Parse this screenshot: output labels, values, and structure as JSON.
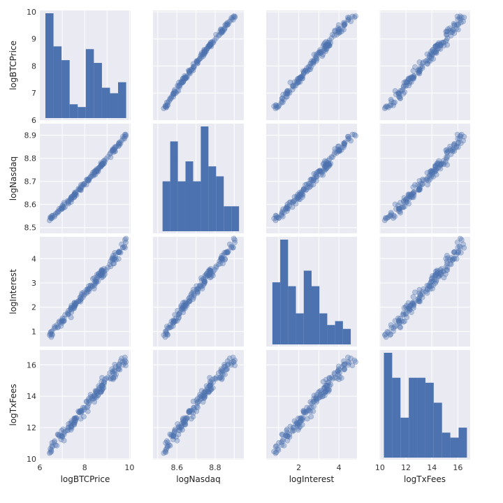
{
  "chart_data": {
    "type": "pairplot",
    "variables": [
      "logBTCPrice",
      "logNasdaq",
      "logInterest",
      "logTxFees"
    ],
    "ranges": {
      "logBTCPrice": [
        6.0,
        10.05
      ],
      "logNasdaq": [
        8.475,
        8.95
      ],
      "logInterest": [
        0.38,
        4.9
      ],
      "logTxFees": [
        9.95,
        16.95
      ]
    },
    "ticks": {
      "logBTCPrice": [
        6,
        7,
        8,
        9,
        10
      ],
      "logNasdaq": [
        8.5,
        8.6,
        8.7,
        8.8,
        8.9
      ],
      "logInterest": [
        1,
        2,
        3,
        4
      ],
      "logTxFees": [
        10,
        12,
        14,
        16
      ]
    },
    "bottom_ticks": {
      "logBTCPrice": [
        6,
        8,
        10
      ],
      "logNasdaq": [
        8.6,
        8.8
      ],
      "logInterest": [
        2,
        4
      ],
      "logTxFees": [
        10,
        12,
        14,
        16
      ]
    },
    "histograms": {
      "logBTCPrice": {
        "edges": [
          6.25,
          6.61,
          6.97,
          7.33,
          7.69,
          8.05,
          8.41,
          8.77,
          9.13,
          9.49,
          9.85
        ],
        "counts": [
          38,
          26,
          21,
          5,
          4,
          25,
          20,
          11,
          9,
          13
        ]
      },
      "logNasdaq": {
        "edges": [
          8.525,
          8.565,
          8.605,
          8.645,
          8.685,
          8.725,
          8.765,
          8.805,
          8.845,
          8.885,
          8.925
        ],
        "counts": [
          10,
          18,
          10,
          14,
          10,
          21,
          13,
          11,
          5,
          5
        ]
      },
      "logInterest": {
        "edges": [
          0.69,
          1.08,
          1.47,
          1.86,
          2.25,
          2.64,
          3.03,
          3.42,
          3.81,
          4.2,
          4.59
        ],
        "counts": [
          16,
          27,
          15,
          8,
          19,
          15,
          8,
          5,
          6,
          4
        ]
      },
      "logTxFees": {
        "edges": [
          10.3,
          10.94,
          11.58,
          12.22,
          12.86,
          13.5,
          14.14,
          14.78,
          15.42,
          16.06,
          16.7
        ],
        "counts": [
          21,
          16,
          8,
          16,
          16,
          15,
          11,
          5,
          4,
          6
        ]
      }
    },
    "styles": {
      "bar_color": "#4c72b0",
      "point_color": "#4c72b0",
      "point_opacity": 0.35,
      "panel_bg": "#eaeaf2",
      "grid_color": "#ffffff"
    }
  }
}
